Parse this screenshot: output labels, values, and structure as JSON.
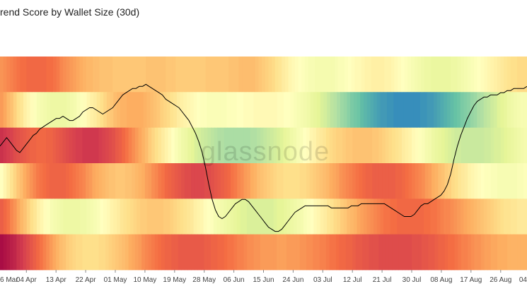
{
  "chart_data": {
    "type": "heatmap",
    "title": "rend Score by Wallet Size (30d)",
    "watermark": "glassnode",
    "x_start": "2021-03-27",
    "x_end": "2021-09-03",
    "x_ticks": [
      {
        "date": "2021-03-26",
        "label": "6 Mar"
      },
      {
        "date": "2021-04-04",
        "label": "04 Apr"
      },
      {
        "date": "2021-04-13",
        "label": "13 Apr"
      },
      {
        "date": "2021-04-22",
        "label": "22 Apr"
      },
      {
        "date": "2021-05-01",
        "label": "01 May"
      },
      {
        "date": "2021-05-10",
        "label": "10 May"
      },
      {
        "date": "2021-05-19",
        "label": "19 May"
      },
      {
        "date": "2021-05-28",
        "label": "28 May"
      },
      {
        "date": "2021-06-06",
        "label": "06 Jun"
      },
      {
        "date": "2021-06-15",
        "label": "15 Jun"
      },
      {
        "date": "2021-06-24",
        "label": "24 Jun"
      },
      {
        "date": "2021-07-03",
        "label": "03 Jul"
      },
      {
        "date": "2021-07-12",
        "label": "12 Jul"
      },
      {
        "date": "2021-07-21",
        "label": "21 Jul"
      },
      {
        "date": "2021-07-30",
        "label": "30 Jul"
      },
      {
        "date": "2021-08-08",
        "label": "08 Aug"
      },
      {
        "date": "2021-08-17",
        "label": "17 Aug"
      },
      {
        "date": "2021-08-26",
        "label": "26 Aug"
      },
      {
        "date": "2021-09-04",
        "label": "04"
      }
    ],
    "colorscale": [
      "#5e4fa2",
      "#3288bd",
      "#66c2a5",
      "#abdda4",
      "#e6f598",
      "#ffffbf",
      "#fee08b",
      "#fdae61",
      "#f46d43",
      "#d53e4f",
      "#9e0142"
    ],
    "value_range": [
      0,
      1
    ],
    "rows": [
      {
        "values": [
          0.74,
          0.75,
          0.76,
          0.77,
          0.78,
          0.79,
          0.8,
          0.8,
          0.81,
          0.81,
          0.81,
          0.81,
          0.81,
          0.81,
          0.8,
          0.8,
          0.79,
          0.78,
          0.76,
          0.75,
          0.74,
          0.73,
          0.72,
          0.71,
          0.7,
          0.69,
          0.68,
          0.68,
          0.67,
          0.67,
          0.66,
          0.66,
          0.66,
          0.66,
          0.65,
          0.65,
          0.65,
          0.65,
          0.65,
          0.65,
          0.65,
          0.65,
          0.65,
          0.65,
          0.66,
          0.66,
          0.66,
          0.66,
          0.66,
          0.66,
          0.65,
          0.65,
          0.65,
          0.64,
          0.64,
          0.64,
          0.64,
          0.64,
          0.64,
          0.64,
          0.64,
          0.64,
          0.65,
          0.65,
          0.65,
          0.65,
          0.65,
          0.65,
          0.65,
          0.66,
          0.66,
          0.66,
          0.67,
          0.67,
          0.67,
          0.67,
          0.67,
          0.66,
          0.65,
          0.64,
          0.63,
          0.62,
          0.61,
          0.59,
          0.58,
          0.56,
          0.55,
          0.53,
          0.52,
          0.51,
          0.5,
          0.49,
          0.48,
          0.47,
          0.47,
          0.46,
          0.46,
          0.46,
          0.46,
          0.46,
          0.46,
          0.47,
          0.48,
          0.48,
          0.49,
          0.5,
          0.51,
          0.52,
          0.52,
          0.53,
          0.54,
          0.54,
          0.55,
          0.55,
          0.55,
          0.55,
          0.54,
          0.54,
          0.53,
          0.52,
          0.51,
          0.5,
          0.49,
          0.48,
          0.47,
          0.46,
          0.45,
          0.44,
          0.43,
          0.43,
          0.42,
          0.42,
          0.42,
          0.42,
          0.42,
          0.42,
          0.43,
          0.43,
          0.44,
          0.45,
          0.46,
          0.47,
          0.48,
          0.49,
          0.5,
          0.51,
          0.52,
          0.53,
          0.54,
          0.55,
          0.56,
          0.57,
          0.58,
          0.59,
          0.6,
          0.6,
          0.61,
          0.61,
          0.61
        ]
      },
      {
        "values": [
          0.73,
          0.71,
          0.68,
          0.66,
          0.63,
          0.6,
          0.58,
          0.55,
          0.53,
          0.51,
          0.49,
          0.47,
          0.46,
          0.45,
          0.44,
          0.43,
          0.43,
          0.43,
          0.43,
          0.43,
          0.44,
          0.45,
          0.46,
          0.48,
          0.49,
          0.51,
          0.53,
          0.55,
          0.56,
          0.58,
          0.6,
          0.62,
          0.64,
          0.65,
          0.67,
          0.68,
          0.69,
          0.69,
          0.7,
          0.7,
          0.7,
          0.7,
          0.7,
          0.69,
          0.68,
          0.67,
          0.66,
          0.65,
          0.63,
          0.62,
          0.61,
          0.59,
          0.58,
          0.56,
          0.55,
          0.54,
          0.53,
          0.52,
          0.51,
          0.5,
          0.49,
          0.49,
          0.48,
          0.48,
          0.48,
          0.48,
          0.48,
          0.48,
          0.49,
          0.49,
          0.49,
          0.5,
          0.5,
          0.51,
          0.51,
          0.51,
          0.52,
          0.52,
          0.52,
          0.52,
          0.52,
          0.52,
          0.52,
          0.51,
          0.51,
          0.5,
          0.5,
          0.49,
          0.48,
          0.47,
          0.46,
          0.45,
          0.44,
          0.42,
          0.41,
          0.4,
          0.38,
          0.37,
          0.35,
          0.33,
          0.32,
          0.3,
          0.28,
          0.27,
          0.25,
          0.23,
          0.22,
          0.21,
          0.19,
          0.18,
          0.17,
          0.16,
          0.15,
          0.14,
          0.13,
          0.13,
          0.12,
          0.12,
          0.11,
          0.11,
          0.11,
          0.11,
          0.11,
          0.11,
          0.11,
          0.11,
          0.12,
          0.12,
          0.13,
          0.13,
          0.14,
          0.15,
          0.16,
          0.17,
          0.18,
          0.19,
          0.2,
          0.21,
          0.23,
          0.24,
          0.25,
          0.27,
          0.28,
          0.3,
          0.31,
          0.33,
          0.34,
          0.36,
          0.37,
          0.39,
          0.4,
          0.41,
          0.43,
          0.44,
          0.45,
          0.46,
          0.47,
          0.47
        ]
      },
      {
        "values": [
          0.92,
          0.91,
          0.9,
          0.89,
          0.87,
          0.86,
          0.85,
          0.84,
          0.83,
          0.82,
          0.82,
          0.81,
          0.81,
          0.81,
          0.82,
          0.82,
          0.83,
          0.84,
          0.85,
          0.86,
          0.87,
          0.88,
          0.89,
          0.9,
          0.9,
          0.91,
          0.91,
          0.91,
          0.91,
          0.91,
          0.9,
          0.89,
          0.88,
          0.87,
          0.86,
          0.84,
          0.83,
          0.81,
          0.79,
          0.77,
          0.75,
          0.73,
          0.71,
          0.69,
          0.67,
          0.64,
          0.62,
          0.6,
          0.58,
          0.56,
          0.54,
          0.52,
          0.5,
          0.48,
          0.46,
          0.44,
          0.43,
          0.41,
          0.4,
          0.38,
          0.37,
          0.36,
          0.35,
          0.34,
          0.33,
          0.32,
          0.31,
          0.31,
          0.3,
          0.3,
          0.3,
          0.3,
          0.3,
          0.3,
          0.3,
          0.3,
          0.31,
          0.31,
          0.32,
          0.33,
          0.34,
          0.35,
          0.36,
          0.37,
          0.38,
          0.39,
          0.41,
          0.42,
          0.44,
          0.45,
          0.47,
          0.48,
          0.5,
          0.51,
          0.53,
          0.54,
          0.56,
          0.57,
          0.58,
          0.6,
          0.61,
          0.62,
          0.63,
          0.63,
          0.64,
          0.65,
          0.65,
          0.66,
          0.66,
          0.66,
          0.66,
          0.66,
          0.66,
          0.65,
          0.65,
          0.64,
          0.63,
          0.62,
          0.61,
          0.6,
          0.59,
          0.58,
          0.56,
          0.55,
          0.54,
          0.52,
          0.51,
          0.49,
          0.48,
          0.46,
          0.45,
          0.43,
          0.42,
          0.41,
          0.4,
          0.39,
          0.38,
          0.37,
          0.36,
          0.36,
          0.35,
          0.35,
          0.35,
          0.35,
          0.35,
          0.35,
          0.35,
          0.36,
          0.36,
          0.37,
          0.38,
          0.38,
          0.39,
          0.4,
          0.41,
          0.42,
          0.43,
          0.44,
          0.45,
          0.46
        ]
      },
      {
        "values": [
          0.5,
          0.53,
          0.56,
          0.59,
          0.62,
          0.65,
          0.67,
          0.7,
          0.72,
          0.74,
          0.76,
          0.78,
          0.79,
          0.8,
          0.81,
          0.82,
          0.82,
          0.82,
          0.82,
          0.82,
          0.81,
          0.8,
          0.79,
          0.78,
          0.77,
          0.76,
          0.74,
          0.73,
          0.71,
          0.7,
          0.69,
          0.68,
          0.67,
          0.66,
          0.66,
          0.65,
          0.65,
          0.65,
          0.66,
          0.66,
          0.67,
          0.68,
          0.69,
          0.7,
          0.72,
          0.73,
          0.75,
          0.76,
          0.78,
          0.79,
          0.81,
          0.82,
          0.83,
          0.84,
          0.85,
          0.86,
          0.87,
          0.87,
          0.88,
          0.88,
          0.88,
          0.88,
          0.87,
          0.87,
          0.86,
          0.85,
          0.84,
          0.83,
          0.82,
          0.81,
          0.79,
          0.78,
          0.76,
          0.75,
          0.73,
          0.72,
          0.7,
          0.69,
          0.67,
          0.66,
          0.65,
          0.64,
          0.63,
          0.62,
          0.61,
          0.61,
          0.6,
          0.6,
          0.6,
          0.6,
          0.6,
          0.61,
          0.61,
          0.62,
          0.63,
          0.64,
          0.65,
          0.66,
          0.67,
          0.68,
          0.7,
          0.71,
          0.72,
          0.74,
          0.75,
          0.76,
          0.77,
          0.78,
          0.79,
          0.8,
          0.81,
          0.82,
          0.82,
          0.83,
          0.83,
          0.83,
          0.83,
          0.83,
          0.83,
          0.83,
          0.82,
          0.82,
          0.81,
          0.8,
          0.79,
          0.78,
          0.77,
          0.76,
          0.75,
          0.73,
          0.72,
          0.7,
          0.69,
          0.67,
          0.66,
          0.64,
          0.63,
          0.61,
          0.6,
          0.58,
          0.57,
          0.56,
          0.54,
          0.53,
          0.52,
          0.51,
          0.5,
          0.49,
          0.49,
          0.48,
          0.48,
          0.47,
          0.47,
          0.47,
          0.47,
          0.47,
          0.47,
          0.48,
          0.48,
          0.49
        ]
      },
      {
        "values": [
          0.83,
          0.81,
          0.79,
          0.76,
          0.74,
          0.71,
          0.68,
          0.66,
          0.63,
          0.6,
          0.58,
          0.55,
          0.53,
          0.51,
          0.49,
          0.47,
          0.46,
          0.45,
          0.44,
          0.43,
          0.43,
          0.43,
          0.43,
          0.43,
          0.44,
          0.44,
          0.45,
          0.46,
          0.47,
          0.48,
          0.5,
          0.51,
          0.52,
          0.54,
          0.55,
          0.56,
          0.58,
          0.59,
          0.6,
          0.61,
          0.62,
          0.63,
          0.64,
          0.64,
          0.65,
          0.65,
          0.65,
          0.65,
          0.65,
          0.64,
          0.64,
          0.63,
          0.62,
          0.61,
          0.6,
          0.59,
          0.58,
          0.57,
          0.55,
          0.54,
          0.53,
          0.51,
          0.5,
          0.49,
          0.47,
          0.46,
          0.45,
          0.44,
          0.43,
          0.42,
          0.41,
          0.4,
          0.39,
          0.39,
          0.38,
          0.38,
          0.38,
          0.38,
          0.38,
          0.38,
          0.38,
          0.38,
          0.39,
          0.4,
          0.4,
          0.41,
          0.42,
          0.43,
          0.44,
          0.45,
          0.46,
          0.48,
          0.49,
          0.5,
          0.52,
          0.53,
          0.55,
          0.56,
          0.58,
          0.59,
          0.61,
          0.62,
          0.64,
          0.65,
          0.67,
          0.68,
          0.69,
          0.71,
          0.72,
          0.73,
          0.74,
          0.75,
          0.76,
          0.77,
          0.78,
          0.79,
          0.79,
          0.8,
          0.8,
          0.81,
          0.81,
          0.81,
          0.81,
          0.81,
          0.81,
          0.81,
          0.81,
          0.8,
          0.8,
          0.79,
          0.79,
          0.78,
          0.77,
          0.76,
          0.76,
          0.75,
          0.74,
          0.73,
          0.72,
          0.71,
          0.7,
          0.69,
          0.68,
          0.67,
          0.66,
          0.65,
          0.64,
          0.63,
          0.62,
          0.61,
          0.6,
          0.59,
          0.59,
          0.58,
          0.58,
          0.57,
          0.57,
          0.57
        ]
      },
      {
        "values": [
          0.98,
          0.97,
          0.96,
          0.95,
          0.94,
          0.92,
          0.91,
          0.89,
          0.87,
          0.85,
          0.83,
          0.81,
          0.79,
          0.77,
          0.75,
          0.73,
          0.71,
          0.69,
          0.67,
          0.66,
          0.64,
          0.63,
          0.62,
          0.61,
          0.61,
          0.6,
          0.6,
          0.6,
          0.6,
          0.6,
          0.61,
          0.61,
          0.62,
          0.63,
          0.64,
          0.65,
          0.66,
          0.67,
          0.68,
          0.7,
          0.71,
          0.72,
          0.73,
          0.75,
          0.76,
          0.77,
          0.78,
          0.79,
          0.8,
          0.81,
          0.82,
          0.82,
          0.83,
          0.83,
          0.84,
          0.84,
          0.84,
          0.84,
          0.84,
          0.84,
          0.84,
          0.84,
          0.83,
          0.83,
          0.82,
          0.82,
          0.81,
          0.81,
          0.8,
          0.79,
          0.79,
          0.78,
          0.77,
          0.77,
          0.76,
          0.75,
          0.75,
          0.74,
          0.74,
          0.73,
          0.73,
          0.73,
          0.73,
          0.73,
          0.72,
          0.72,
          0.72,
          0.73,
          0.73,
          0.73,
          0.73,
          0.74,
          0.74,
          0.75,
          0.75,
          0.76,
          0.76,
          0.77,
          0.77,
          0.78,
          0.79,
          0.79,
          0.8,
          0.81,
          0.81,
          0.82,
          0.82,
          0.83,
          0.84,
          0.84,
          0.85,
          0.85,
          0.86,
          0.86,
          0.86,
          0.87,
          0.87,
          0.87,
          0.87,
          0.87,
          0.87,
          0.87,
          0.87,
          0.87,
          0.87,
          0.86,
          0.86,
          0.86,
          0.85,
          0.85,
          0.84,
          0.84,
          0.83,
          0.82,
          0.82,
          0.81,
          0.8,
          0.8,
          0.79,
          0.78,
          0.77,
          0.77,
          0.76,
          0.75,
          0.74,
          0.74,
          0.73,
          0.72,
          0.72,
          0.71,
          0.71,
          0.7,
          0.7,
          0.7,
          0.69,
          0.69,
          0.69,
          0.69,
          0.69,
          0.69
        ]
      }
    ],
    "line": {
      "color": "#000000",
      "values": [
        0.58,
        0.6,
        0.62,
        0.6,
        0.58,
        0.56,
        0.55,
        0.57,
        0.59,
        0.61,
        0.63,
        0.64,
        0.66,
        0.67,
        0.68,
        0.69,
        0.7,
        0.71,
        0.71,
        0.72,
        0.71,
        0.7,
        0.7,
        0.71,
        0.72,
        0.74,
        0.75,
        0.76,
        0.76,
        0.75,
        0.74,
        0.73,
        0.74,
        0.75,
        0.76,
        0.78,
        0.8,
        0.82,
        0.83,
        0.84,
        0.85,
        0.85,
        0.86,
        0.86,
        0.87,
        0.86,
        0.85,
        0.84,
        0.83,
        0.82,
        0.8,
        0.79,
        0.78,
        0.77,
        0.76,
        0.74,
        0.72,
        0.7,
        0.67,
        0.64,
        0.6,
        0.55,
        0.48,
        0.4,
        0.33,
        0.28,
        0.25,
        0.24,
        0.25,
        0.27,
        0.29,
        0.31,
        0.32,
        0.33,
        0.33,
        0.32,
        0.3,
        0.28,
        0.26,
        0.24,
        0.22,
        0.2,
        0.19,
        0.18,
        0.18,
        0.19,
        0.21,
        0.23,
        0.25,
        0.27,
        0.28,
        0.29,
        0.3,
        0.3,
        0.3,
        0.3,
        0.3,
        0.3,
        0.3,
        0.3,
        0.29,
        0.29,
        0.29,
        0.29,
        0.29,
        0.29,
        0.3,
        0.3,
        0.3,
        0.31,
        0.31,
        0.31,
        0.31,
        0.31,
        0.31,
        0.31,
        0.31,
        0.3,
        0.29,
        0.28,
        0.27,
        0.26,
        0.25,
        0.25,
        0.25,
        0.26,
        0.28,
        0.3,
        0.31,
        0.31,
        0.32,
        0.33,
        0.34,
        0.35,
        0.37,
        0.4,
        0.45,
        0.52,
        0.58,
        0.63,
        0.67,
        0.71,
        0.74,
        0.77,
        0.79,
        0.8,
        0.81,
        0.81,
        0.82,
        0.82,
        0.82,
        0.83,
        0.83,
        0.84,
        0.84,
        0.85,
        0.85,
        0.85,
        0.85,
        0.86
      ],
      "range": [
        0,
        1
      ]
    }
  }
}
